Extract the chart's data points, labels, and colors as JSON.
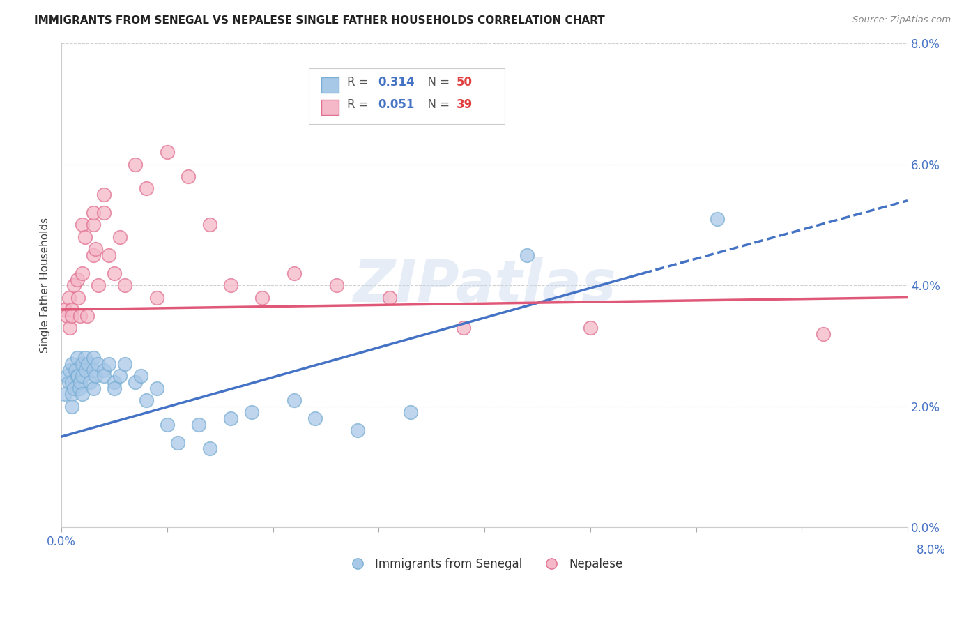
{
  "title": "IMMIGRANTS FROM SENEGAL VS NEPALESE SINGLE FATHER HOUSEHOLDS CORRELATION CHART",
  "source": "Source: ZipAtlas.com",
  "ylabel": "Single Father Households",
  "xlim": [
    0.0,
    0.08
  ],
  "ylim": [
    0.0,
    0.08
  ],
  "series1_color": "#a8c8e8",
  "series1_edge": "#7aafd4",
  "series2_color": "#f4b8c8",
  "series2_edge": "#e07090",
  "series1_label": "Immigrants from Senegal",
  "series2_label": "Nepalese",
  "series1_R": "0.314",
  "series1_N": "50",
  "series2_R": "0.051",
  "series2_N": "39",
  "line1_color": "#4472c4",
  "line2_color": "#e05878",
  "watermark_text": "ZIPatlas",
  "series1_x": [
    0.0003,
    0.0005,
    0.0007,
    0.0008,
    0.001,
    0.001,
    0.001,
    0.001,
    0.0012,
    0.0013,
    0.0015,
    0.0015,
    0.0016,
    0.0017,
    0.0018,
    0.002,
    0.002,
    0.002,
    0.0022,
    0.0023,
    0.0025,
    0.0027,
    0.003,
    0.003,
    0.003,
    0.0032,
    0.0034,
    0.004,
    0.004,
    0.0045,
    0.005,
    0.005,
    0.0055,
    0.006,
    0.007,
    0.0075,
    0.008,
    0.009,
    0.01,
    0.011,
    0.013,
    0.014,
    0.016,
    0.018,
    0.022,
    0.024,
    0.028,
    0.033,
    0.044,
    0.062
  ],
  "series1_y": [
    0.022,
    0.025,
    0.024,
    0.026,
    0.027,
    0.024,
    0.022,
    0.02,
    0.023,
    0.026,
    0.025,
    0.028,
    0.025,
    0.023,
    0.024,
    0.027,
    0.025,
    0.022,
    0.028,
    0.026,
    0.027,
    0.024,
    0.028,
    0.026,
    0.023,
    0.025,
    0.027,
    0.026,
    0.025,
    0.027,
    0.024,
    0.023,
    0.025,
    0.027,
    0.024,
    0.025,
    0.021,
    0.023,
    0.017,
    0.014,
    0.017,
    0.013,
    0.018,
    0.019,
    0.021,
    0.018,
    0.016,
    0.019,
    0.045,
    0.051
  ],
  "series2_x": [
    0.0003,
    0.0005,
    0.0007,
    0.0008,
    0.001,
    0.001,
    0.0012,
    0.0015,
    0.0016,
    0.0018,
    0.002,
    0.002,
    0.0022,
    0.0024,
    0.003,
    0.003,
    0.003,
    0.0032,
    0.0035,
    0.004,
    0.004,
    0.0045,
    0.005,
    0.0055,
    0.006,
    0.007,
    0.008,
    0.009,
    0.01,
    0.012,
    0.014,
    0.016,
    0.019,
    0.022,
    0.026,
    0.031,
    0.038,
    0.05,
    0.072
  ],
  "series2_y": [
    0.036,
    0.035,
    0.038,
    0.033,
    0.036,
    0.035,
    0.04,
    0.041,
    0.038,
    0.035,
    0.05,
    0.042,
    0.048,
    0.035,
    0.045,
    0.05,
    0.052,
    0.046,
    0.04,
    0.052,
    0.055,
    0.045,
    0.042,
    0.048,
    0.04,
    0.06,
    0.056,
    0.038,
    0.062,
    0.058,
    0.05,
    0.04,
    0.038,
    0.042,
    0.04,
    0.038,
    0.033,
    0.033,
    0.032
  ],
  "line1_x0": 0.0,
  "line1_y0": 0.015,
  "line1_x1": 0.055,
  "line1_y1": 0.042,
  "line1_dash_x0": 0.055,
  "line1_dash_y0": 0.042,
  "line1_dash_x1": 0.08,
  "line1_dash_y1": 0.054,
  "line2_x0": 0.0,
  "line2_y0": 0.036,
  "line2_x1": 0.08,
  "line2_y1": 0.038
}
